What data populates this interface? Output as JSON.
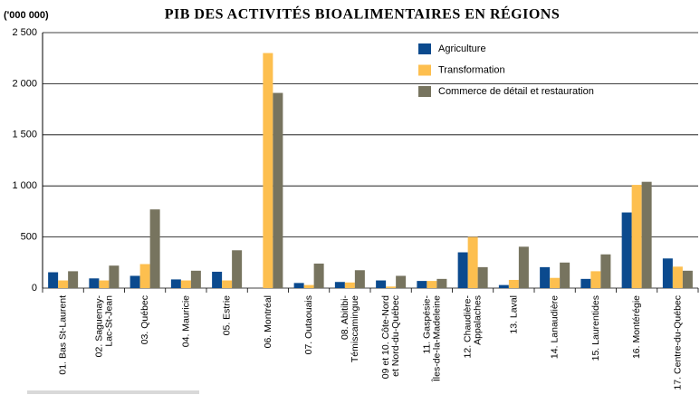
{
  "chart_data": {
    "type": "bar",
    "title": "PIB DES ACTIVITÉS BIOALIMENTAIRES EN RÉGIONS",
    "y_label": "('000 000)",
    "categories": [
      "01. Bas St-Laurent",
      "02. Saguenay-\nLac-St-Jean",
      "03. Québec",
      "04. Mauricie",
      "05. Estrie",
      "06. Montréal",
      "07. Outaouais",
      "08. Abitibi-\nTémiscamingue",
      "09 et 10. Côte-Nord\net Nord-du-Québec",
      "11. Gaspésie-\nÎles-de-la-Madeleine",
      "12. Chaudière-\nAppalaches",
      "13. Laval",
      "14. Lanaudière",
      "15. Laurentides",
      "16. Montérégie",
      "17. Centre-du-Québec"
    ],
    "series": [
      {
        "name": "Agriculture",
        "color": "#0b4a8e",
        "values": [
          155,
          95,
          120,
          85,
          160,
          0,
          50,
          60,
          75,
          70,
          350,
          30,
          205,
          90,
          740,
          290
        ]
      },
      {
        "name": "Transformation",
        "color": "#fdbf4f",
        "values": [
          75,
          75,
          235,
          75,
          75,
          2300,
          30,
          55,
          15,
          70,
          500,
          80,
          100,
          165,
          1010,
          210
        ]
      },
      {
        "name": "Commerce de détail et restauration",
        "color": "#77745f",
        "values": [
          165,
          220,
          770,
          170,
          370,
          1910,
          240,
          175,
          120,
          90,
          205,
          405,
          250,
          330,
          1040,
          170
        ]
      }
    ],
    "ylim": [
      0,
      2500
    ],
    "yticks": [
      0,
      500,
      {
        "value": 1000,
        "label": "1 000"
      },
      {
        "value": 1500,
        "label": "1 500"
      },
      {
        "value": 2000,
        "label": "2 000"
      },
      {
        "value": 2500,
        "label": "2 500"
      }
    ],
    "grid": true,
    "legend": "top-right"
  }
}
